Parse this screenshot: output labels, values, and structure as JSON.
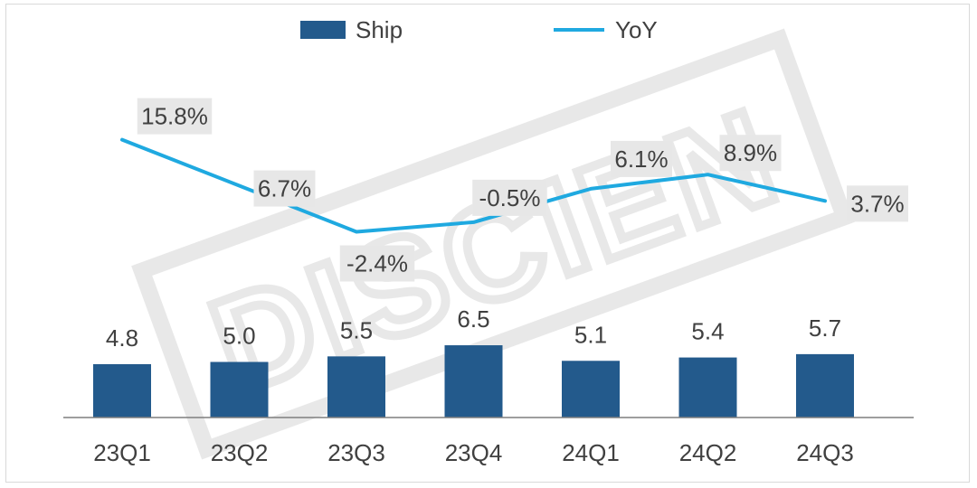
{
  "chart_data": {
    "type": "bar+line",
    "categories": [
      "23Q1",
      "23Q2",
      "23Q3",
      "23Q4",
      "24Q1",
      "24Q2",
      "24Q3"
    ],
    "series": [
      {
        "name": "Ship",
        "type": "bar",
        "axis": "left",
        "values": [
          4.8,
          5.0,
          5.5,
          6.5,
          5.1,
          5.4,
          5.7
        ],
        "labels": [
          "4.8",
          "5.0",
          "5.5",
          "6.5",
          "5.1",
          "5.4",
          "5.7"
        ],
        "color": "#235a8c"
      },
      {
        "name": "YoY",
        "type": "line",
        "axis": "right",
        "values": [
          15.8,
          6.7,
          -2.4,
          -0.5,
          6.1,
          8.9,
          3.7
        ],
        "labels": [
          "15.8%",
          "6.7%",
          "-2.4%",
          "-0.5%",
          "6.1%",
          "8.9%",
          "3.7%"
        ],
        "color": "#1fa9e0"
      }
    ],
    "legend": {
      "position": "top",
      "items": [
        "Ship",
        "YoY"
      ]
    },
    "watermark": "DISCIEN",
    "grid": false
  }
}
